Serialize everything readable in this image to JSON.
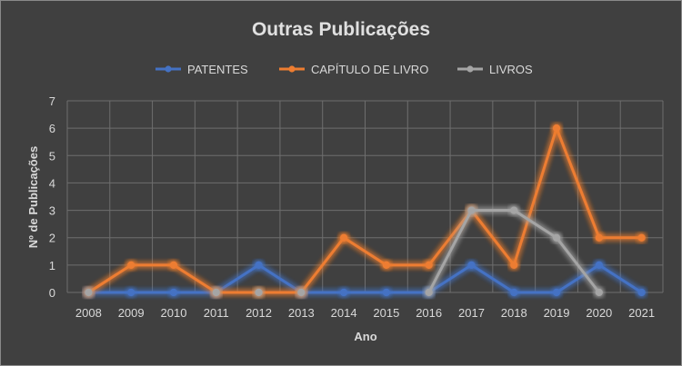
{
  "chart_data": {
    "type": "line",
    "title": "Outras Publicações",
    "xlabel": "Ano",
    "ylabel": "Nº  de Publicações",
    "ylim": [
      0,
      7
    ],
    "yticks": [
      0,
      1,
      2,
      3,
      4,
      5,
      6,
      7
    ],
    "grid": true,
    "legend_position": "top",
    "categories": [
      "2008",
      "2009",
      "2010",
      "2011",
      "2012",
      "2013",
      "2014",
      "2015",
      "2016",
      "2017",
      "2018",
      "2019",
      "2020",
      "2021"
    ],
    "series": [
      {
        "name": "PATENTES",
        "color": "#4472c4",
        "values": [
          0,
          0,
          0,
          0,
          1,
          0,
          0,
          0,
          0,
          1,
          0,
          0,
          1,
          0
        ]
      },
      {
        "name": "CAPÍTULO DE LIVRO",
        "color": "#ed7d31",
        "values": [
          0,
          1,
          1,
          0,
          0,
          0,
          2,
          1,
          1,
          3,
          1,
          6,
          2,
          2
        ]
      },
      {
        "name": "LIVROS",
        "color": "#a5a5a5",
        "values": [
          0,
          null,
          null,
          0,
          0,
          0,
          null,
          null,
          0,
          3,
          3,
          2,
          0,
          null
        ]
      }
    ]
  }
}
